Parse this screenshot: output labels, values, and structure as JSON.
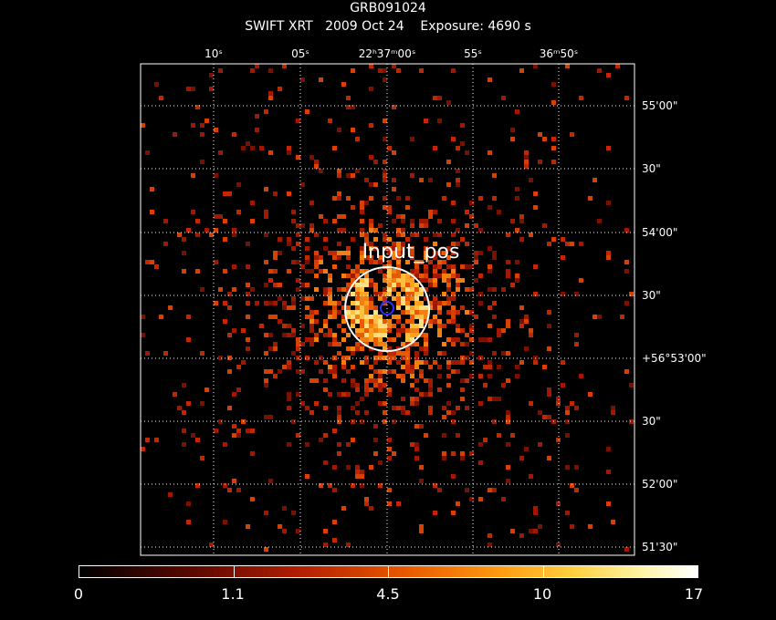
{
  "header": {
    "title": "GRB091024",
    "subtitle": "SWIFT XRT   2009 Oct 24    Exposure: 4690 s"
  },
  "axes": {
    "ra_labels": [
      "10ˢ",
      "05ˢ",
      "22ʰ37ᵐ00ˢ",
      "55ˢ",
      "36ᵐ50ˢ"
    ],
    "dec_labels": [
      "55'00\"",
      "30\"",
      "54'00\"",
      "30\"",
      "+56°53'00\"",
      "30\"",
      "52'00\"",
      "51'30\""
    ]
  },
  "annotations": {
    "input_pos_label": "Input_pos"
  },
  "colorbar": {
    "tick_labels": [
      "0",
      "1.1",
      "4.5",
      "10",
      "17"
    ]
  },
  "colors": {
    "background": "#000000",
    "grid": "#ffffff",
    "circle": "#ffffff",
    "marker": "#3030ff"
  }
}
